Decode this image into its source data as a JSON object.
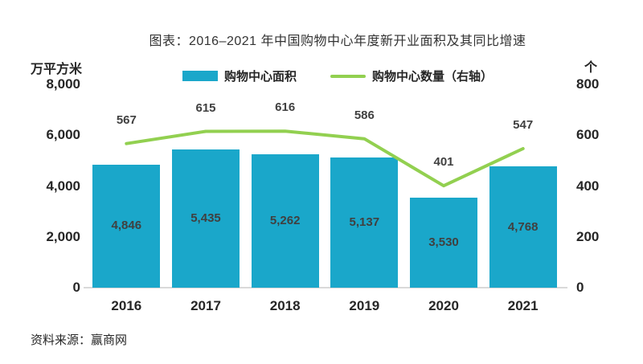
{
  "title": "图表：2016–2021 年中国购物中心年度新开业面积及其同比增速",
  "legend": [
    {
      "label": "购物中心面积",
      "type": "bar",
      "color": "#1AA7CA"
    },
    {
      "label": "购物中心数量（右轴）",
      "type": "line",
      "color": "#92D050"
    }
  ],
  "axes": {
    "left_unit": "万平方米",
    "right_unit": "个",
    "left_ticks": [
      "8,000",
      "6,000",
      "4,000",
      "2,000",
      "0"
    ],
    "right_ticks": [
      "800",
      "600",
      "400",
      "200",
      "0"
    ]
  },
  "chart_data": {
    "type": "bar",
    "categories": [
      "2016",
      "2017",
      "2018",
      "2019",
      "2020",
      "2021"
    ],
    "series": [
      {
        "name": "购物中心面积",
        "type": "bar",
        "axis": "left",
        "values": [
          4846,
          5435,
          5262,
          5137,
          3530,
          4768
        ],
        "labels": [
          "4,846",
          "5,435",
          "5,262",
          "5,137",
          "3,530",
          "4,768"
        ],
        "color": "#1AA7CA"
      },
      {
        "name": "购物中心数量（右轴）",
        "type": "line",
        "axis": "right",
        "values": [
          567,
          615,
          616,
          586,
          401,
          547
        ],
        "labels": [
          "567",
          "615",
          "616",
          "586",
          "401",
          "547"
        ],
        "color": "#92D050"
      }
    ],
    "title": "图表：2016–2021 年中国购物中心年度新开业面积及其同比增速",
    "xlabel": "",
    "ylabel_left": "万平方米",
    "ylabel_right": "个",
    "left_ylim": [
      0,
      8000
    ],
    "right_ylim": [
      0,
      800
    ],
    "grid": false,
    "legend_position": "top"
  },
  "source": "资料来源：赢商网",
  "colors": {
    "bar": "#1AA7CA",
    "line": "#92D050",
    "label": "#404040",
    "axis_text": "#262626",
    "baseline": "#d9d9d9"
  }
}
